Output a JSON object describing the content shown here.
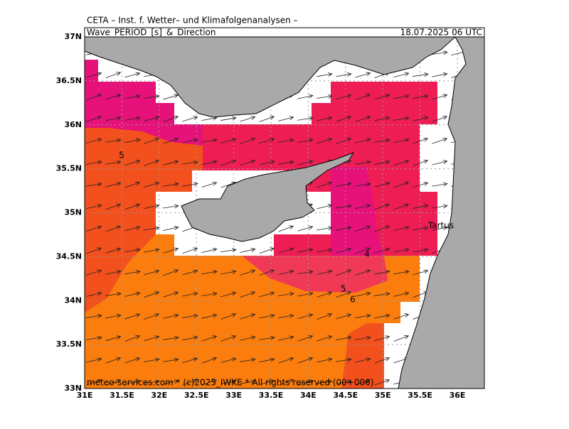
{
  "header": {
    "institute": "CETA – Inst. f. Wetter– und Klimafolgenanalysen –",
    "title": "Wave_PERIOD_[s]_&_Direction",
    "valid_time": "18.07.2025 06 UTC"
  },
  "map": {
    "lat_labels": [
      "37N",
      "36.5N",
      "36N",
      "35.5N",
      "35N",
      "34.5N",
      "34N",
      "33.5N",
      "33N"
    ],
    "lon_labels": [
      "31E",
      "31.5E",
      "32E",
      "32.5E",
      "33E",
      "33.5E",
      "34E",
      "34.5E",
      "35E",
      "35.5E",
      "36E"
    ],
    "contour_labels": [
      "5",
      "4",
      "5",
      "6"
    ],
    "place_labels": [
      "Tartus"
    ]
  },
  "footer": "meteo-services.com * (c)2025_IWKE * All rights reserved (00+006)"
}
